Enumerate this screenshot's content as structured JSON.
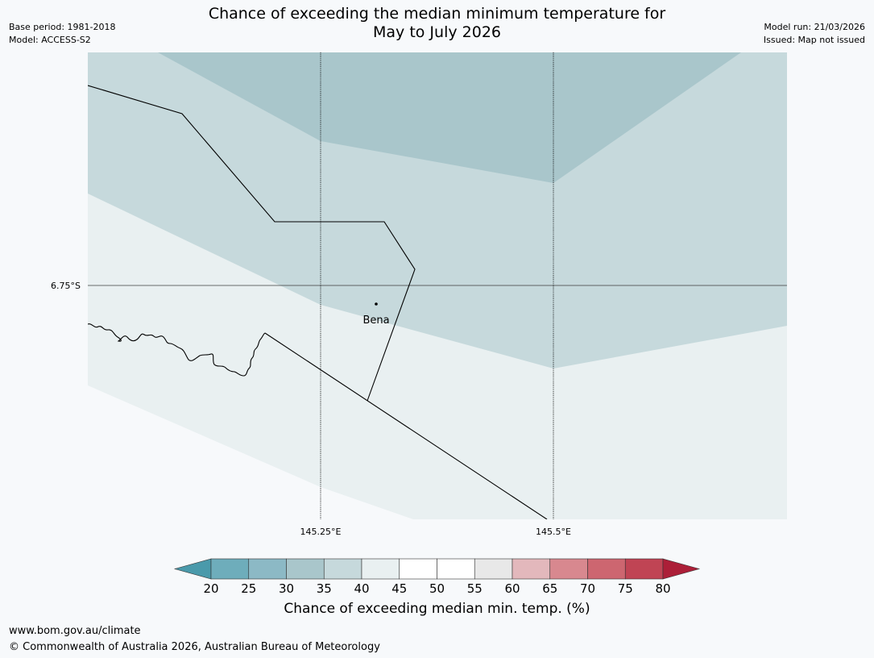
{
  "header": {
    "title_line1": "Chance of exceeding the median minimum temperature for",
    "title_line2": "May to July 2026",
    "base_period": "Base period: 1981-2018",
    "model": "Model: ACCESS-S2",
    "model_run": "Model run: 21/03/2026",
    "issued": "Issued: Map not issued"
  },
  "map": {
    "latitude_label": "6.75°S",
    "longitude_labels": [
      "145.25°E",
      "145.5°E"
    ],
    "place": "Bena",
    "zone_colors": {
      "band_35_40": "#a9c6cb",
      "band_40_45": "#c6d9dc",
      "band_45_50": "#e9f0f1",
      "land_line": "#000000",
      "gridline": "#000000"
    }
  },
  "legend": {
    "label": "Chance of exceeding median min. temp. (%)",
    "ticks": [
      "20",
      "25",
      "30",
      "35",
      "40",
      "45",
      "50",
      "55",
      "60",
      "65",
      "70",
      "75",
      "80"
    ],
    "colors": [
      "#4a9aab",
      "#6eadbb",
      "#8cb9c5",
      "#a9c6cb",
      "#c6d9dc",
      "#e9f0f1",
      "#ffffff",
      "#ffffff",
      "#e8e8e8",
      "#e3b8bc",
      "#d8888f",
      "#cd6670",
      "#c04454",
      "#ac1f38"
    ]
  },
  "footer": {
    "url": "www.bom.gov.au/climate",
    "copyright": "© Commonwealth of Australia 2026, Australian Bureau of Meteorology"
  }
}
